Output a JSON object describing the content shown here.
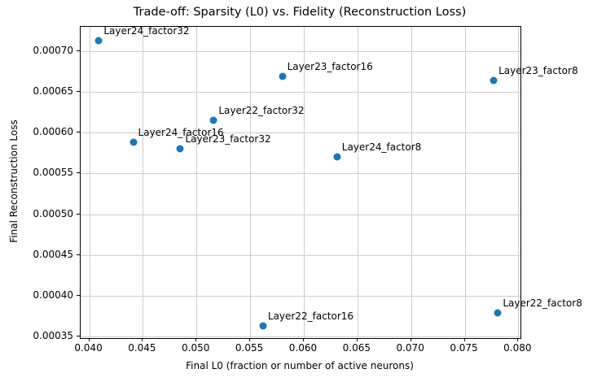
{
  "chart_data": {
    "type": "scatter",
    "title": "Trade-off: Sparsity (L0) vs. Fidelity (Reconstruction Loss)",
    "xlabel": "Final L0 (fraction or number of active neurons)",
    "ylabel": "Final Reconstruction Loss",
    "xlim": [
      0.0392,
      0.0802
    ],
    "ylim": [
      0.000348,
      0.00073
    ],
    "grid": true,
    "legend": "none",
    "marker_color": "#1f77b4",
    "grid_color": "#cccccc",
    "xticks": [
      {
        "value": 0.04,
        "label": "0.040"
      },
      {
        "value": 0.045,
        "label": "0.045"
      },
      {
        "value": 0.05,
        "label": "0.050"
      },
      {
        "value": 0.055,
        "label": "0.055"
      },
      {
        "value": 0.06,
        "label": "0.060"
      },
      {
        "value": 0.065,
        "label": "0.065"
      },
      {
        "value": 0.07,
        "label": "0.070"
      },
      {
        "value": 0.075,
        "label": "0.075"
      },
      {
        "value": 0.08,
        "label": "0.080"
      }
    ],
    "yticks": [
      {
        "value": 0.00035,
        "label": "0.00035"
      },
      {
        "value": 0.0004,
        "label": "0.00040"
      },
      {
        "value": 0.00045,
        "label": "0.00045"
      },
      {
        "value": 0.0005,
        "label": "0.00050"
      },
      {
        "value": 0.00055,
        "label": "0.00055"
      },
      {
        "value": 0.0006,
        "label": "0.00060"
      },
      {
        "value": 0.00065,
        "label": "0.00065"
      },
      {
        "value": 0.0007,
        "label": "0.00070"
      }
    ],
    "points": [
      {
        "label": "Layer24_factor32",
        "x": 0.0409,
        "y": 0.000713
      },
      {
        "label": "Layer23_factor16",
        "x": 0.058,
        "y": 0.000669
      },
      {
        "label": "Layer23_factor8",
        "x": 0.0777,
        "y": 0.000664
      },
      {
        "label": "Layer22_factor32",
        "x": 0.0516,
        "y": 0.000615
      },
      {
        "label": "Layer24_factor16",
        "x": 0.0441,
        "y": 0.000588
      },
      {
        "label": "Layer23_factor32",
        "x": 0.0485,
        "y": 0.00058
      },
      {
        "label": "Layer24_factor8",
        "x": 0.0631,
        "y": 0.00057
      },
      {
        "label": "Layer22_factor16",
        "x": 0.0562,
        "y": 0.000363
      },
      {
        "label": "Layer22_factor8",
        "x": 0.0781,
        "y": 0.000379
      }
    ]
  }
}
